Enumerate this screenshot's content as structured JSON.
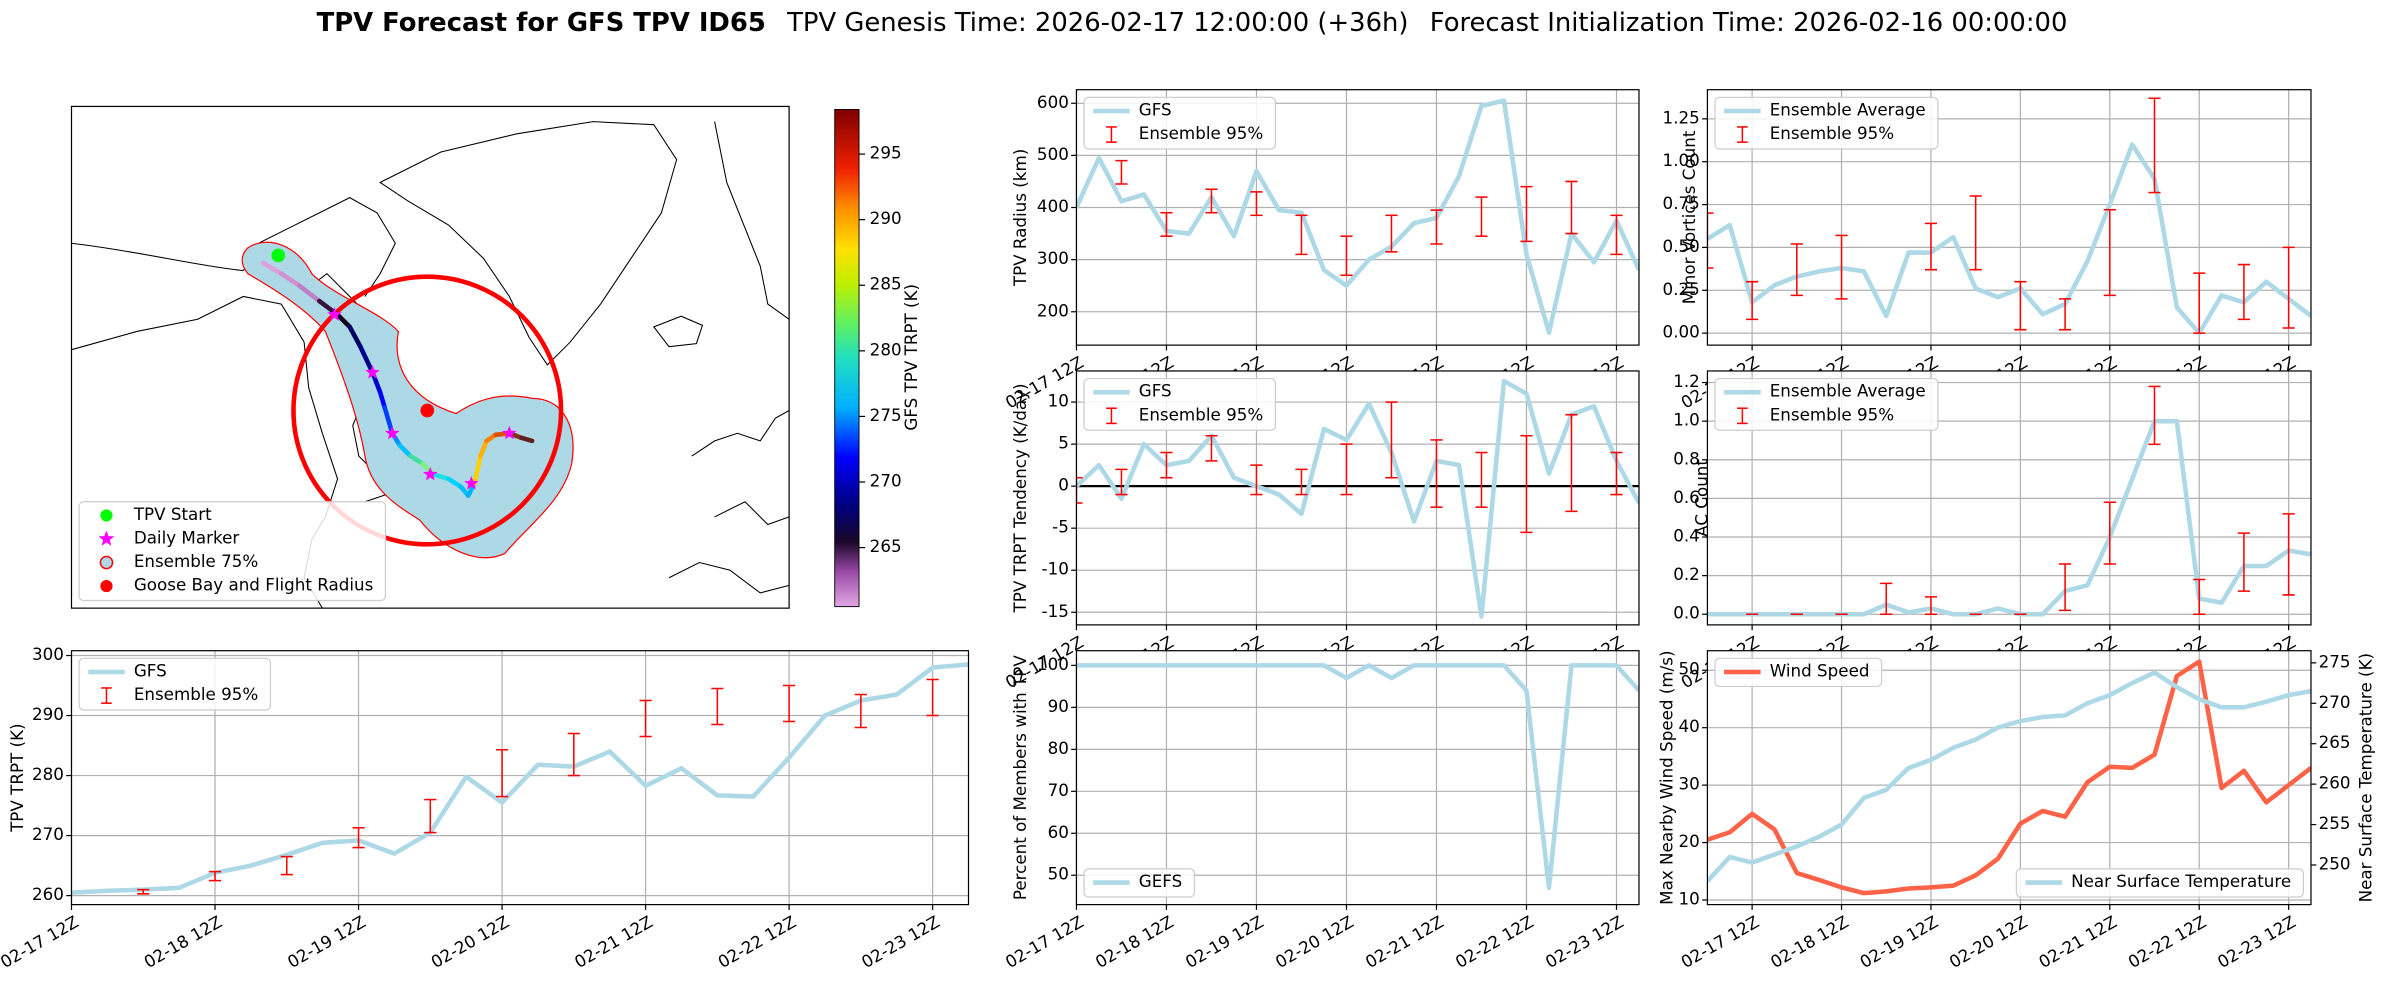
{
  "header": {
    "title": "TPV Forecast for GFS TPV ID65",
    "genesis": "TPV Genesis Time: 2026-02-17 12:00:00 (+36h)",
    "init": "Forecast Initialization Time: 2026-02-16 00:00:00"
  },
  "chart_data": [
    {
      "type": "map",
      "colorbar_label": "GFS TPV TRPT (K)",
      "clim": [
        260.5,
        298.4
      ],
      "cticks": [
        265,
        270,
        275,
        280,
        285,
        290,
        295
      ],
      "legend": "lower left",
      "legend_entries": [
        {
          "name": "TPV Start",
          "marker": "o",
          "color": "#00ff00"
        },
        {
          "name": "Daily Marker",
          "marker": "*",
          "color": "#ff00ff"
        },
        {
          "name": "Ensemble 75%",
          "marker": "o",
          "color": "#add8e6",
          "edgecolor": "#ff0000"
        },
        {
          "name": "Goose Bay and Flight Radius",
          "marker": "o",
          "color": "#ff0000"
        }
      ]
    },
    {
      "type": "line",
      "ylabel": "TPV TRPT (K)",
      "grid": true,
      "legend": "upper left",
      "x": [
        "02-17 12Z",
        "02-17 18Z",
        "02-18 00Z",
        "02-18 06Z",
        "02-18 12Z",
        "02-18 18Z",
        "02-19 00Z",
        "02-19 06Z",
        "02-19 12Z",
        "02-19 18Z",
        "02-20 00Z",
        "02-20 06Z",
        "02-20 12Z",
        "02-20 18Z",
        "02-21 00Z",
        "02-21 06Z",
        "02-21 12Z",
        "02-21 18Z",
        "02-22 00Z",
        "02-22 06Z",
        "02-22 12Z",
        "02-22 18Z",
        "02-23 00Z",
        "02-23 06Z",
        "02-23 12Z",
        "02-23 18Z"
      ],
      "xticks": [
        "02-17 12Z",
        "02-18 12Z",
        "02-19 12Z",
        "02-20 12Z",
        "02-21 12Z",
        "02-22 12Z",
        "02-23 12Z"
      ],
      "ylim": [
        258.5,
        300.8
      ],
      "yticks": [
        260,
        270,
        280,
        290,
        300
      ],
      "series": [
        {
          "name": "GFS",
          "color": "#add8e6",
          "values": [
            260.5,
            260.8,
            261,
            261.3,
            263.8,
            265,
            266.8,
            268.8,
            269.2,
            267,
            270.5,
            279.8,
            275.5,
            281.8,
            281.5,
            284,
            278.3,
            281.2,
            276.7,
            276.5,
            283,
            290,
            292.5,
            293.5,
            298,
            298.5
          ]
        },
        {
          "name": "Ensemble 95%",
          "type": "errorbar",
          "color": "#ff0000",
          "low": [
            null,
            null,
            260.3,
            null,
            262.5,
            null,
            263.5,
            null,
            268,
            null,
            270.5,
            null,
            276.5,
            null,
            280,
            null,
            286.5,
            null,
            288.5,
            null,
            289,
            null,
            288,
            null,
            290,
            null
          ],
          "high": [
            null,
            null,
            261,
            null,
            264,
            null,
            266.5,
            null,
            271.3,
            null,
            276,
            null,
            284.3,
            null,
            287,
            null,
            292.5,
            null,
            294.5,
            null,
            295,
            null,
            293.5,
            null,
            296,
            null
          ]
        }
      ]
    },
    {
      "type": "line",
      "ylabel": "TPV Radius (km)",
      "grid": true,
      "legend": "upper left",
      "x": [
        "02-17 12Z",
        "02-17 18Z",
        "02-18 00Z",
        "02-18 06Z",
        "02-18 12Z",
        "02-18 18Z",
        "02-19 00Z",
        "02-19 06Z",
        "02-19 12Z",
        "02-19 18Z",
        "02-20 00Z",
        "02-20 06Z",
        "02-20 12Z",
        "02-20 18Z",
        "02-21 00Z",
        "02-21 06Z",
        "02-21 12Z",
        "02-21 18Z",
        "02-22 00Z",
        "02-22 06Z",
        "02-22 12Z",
        "02-22 18Z",
        "02-23 00Z",
        "02-23 06Z",
        "02-23 12Z",
        "02-23 18Z"
      ],
      "xticks": [
        "02-17 12Z",
        "02-18 12Z",
        "02-19 12Z",
        "02-20 12Z",
        "02-21 12Z",
        "02-22 12Z",
        "02-23 12Z"
      ],
      "ylim": [
        136,
        626
      ],
      "yticks": [
        200,
        300,
        400,
        500,
        600
      ],
      "series": [
        {
          "name": "GFS",
          "color": "#add8e6",
          "values": [
            400,
            495,
            412,
            425,
            355,
            350,
            420,
            345,
            470,
            395,
            390,
            280,
            250,
            300,
            325,
            370,
            380,
            460,
            595,
            605,
            310,
            160,
            350,
            295,
            375,
            280
          ]
        },
        {
          "name": "Ensemble 95%",
          "type": "errorbar",
          "color": "#ff0000",
          "low": [
            null,
            null,
            445,
            null,
            345,
            null,
            390,
            null,
            385,
            null,
            310,
            null,
            270,
            null,
            315,
            null,
            330,
            null,
            345,
            null,
            335,
            null,
            350,
            null,
            310,
            null
          ],
          "high": [
            null,
            null,
            490,
            null,
            390,
            null,
            435,
            null,
            430,
            null,
            385,
            null,
            345,
            null,
            385,
            null,
            395,
            null,
            420,
            null,
            440,
            null,
            450,
            null,
            385,
            null
          ]
        }
      ]
    },
    {
      "type": "line",
      "ylabel": "TPV TRPT Tendency (K/day)",
      "grid": true,
      "legend": "upper left",
      "hline": 0,
      "x": [
        "02-17 12Z",
        "02-17 18Z",
        "02-18 00Z",
        "02-18 06Z",
        "02-18 12Z",
        "02-18 18Z",
        "02-19 00Z",
        "02-19 06Z",
        "02-19 12Z",
        "02-19 18Z",
        "02-20 00Z",
        "02-20 06Z",
        "02-20 12Z",
        "02-20 18Z",
        "02-21 00Z",
        "02-21 06Z",
        "02-21 12Z",
        "02-21 18Z",
        "02-22 00Z",
        "02-22 06Z",
        "02-22 12Z",
        "02-22 18Z",
        "02-23 00Z",
        "02-23 06Z",
        "02-23 12Z",
        "02-23 18Z"
      ],
      "xticks": [
        "02-17 12Z",
        "02-18 12Z",
        "02-19 12Z",
        "02-20 12Z",
        "02-21 12Z",
        "02-22 12Z",
        "02-23 12Z"
      ],
      "ylim": [
        -16.5,
        13.7
      ],
      "yticks": [
        -15,
        -10,
        -5,
        0,
        5,
        10
      ],
      "series": [
        {
          "name": "GFS",
          "color": "#add8e6",
          "values": [
            0,
            2.5,
            -1.5,
            5,
            2.5,
            3,
            6,
            1,
            0,
            -1,
            -3.3,
            6.8,
            5.5,
            9.8,
            4,
            -4.2,
            3,
            2.5,
            -15.5,
            12.5,
            11,
            1.5,
            8.5,
            9.5,
            3,
            -2
          ]
        },
        {
          "name": "Ensemble 95%",
          "type": "errorbar",
          "color": "#ff0000",
          "low": [
            -2,
            null,
            -1,
            null,
            1,
            null,
            3,
            null,
            -1,
            null,
            -1,
            null,
            -1,
            null,
            1,
            null,
            -2.5,
            null,
            -2.5,
            null,
            -5.5,
            null,
            -3,
            null,
            -1,
            null
          ],
          "high": [
            1,
            null,
            2,
            null,
            4,
            null,
            6,
            null,
            2.5,
            null,
            2,
            null,
            5,
            null,
            10,
            null,
            5.5,
            null,
            4,
            null,
            6,
            null,
            8.5,
            null,
            4,
            null
          ]
        }
      ]
    },
    {
      "type": "line",
      "ylabel": "Percent of Members with TPV",
      "grid": true,
      "legend": "lower left",
      "x": [
        "02-17 12Z",
        "02-17 18Z",
        "02-18 00Z",
        "02-18 06Z",
        "02-18 12Z",
        "02-18 18Z",
        "02-19 00Z",
        "02-19 06Z",
        "02-19 12Z",
        "02-19 18Z",
        "02-20 00Z",
        "02-20 06Z",
        "02-20 12Z",
        "02-20 18Z",
        "02-21 00Z",
        "02-21 06Z",
        "02-21 12Z",
        "02-21 18Z",
        "02-22 00Z",
        "02-22 06Z",
        "02-22 12Z",
        "02-22 18Z",
        "02-23 00Z",
        "02-23 06Z",
        "02-23 12Z",
        "02-23 18Z"
      ],
      "xticks": [
        "02-17 12Z",
        "02-18 12Z",
        "02-19 12Z",
        "02-20 12Z",
        "02-21 12Z",
        "02-22 12Z",
        "02-23 12Z"
      ],
      "ylim": [
        43,
        103.5
      ],
      "yticks": [
        50,
        60,
        70,
        80,
        90,
        100
      ],
      "series": [
        {
          "name": "GEFS",
          "color": "#add8e6",
          "values": [
            100,
            100,
            100,
            100,
            100,
            100,
            100,
            100,
            100,
            100,
            100,
            100,
            97,
            100,
            97,
            100,
            100,
            100,
            100,
            100,
            94,
            47,
            100,
            100,
            100,
            94
          ]
        }
      ]
    },
    {
      "type": "line",
      "ylabel": "Minor Vortices Count",
      "grid": true,
      "legend": "upper left",
      "x": [
        "02-17 00Z",
        "02-17 06Z",
        "02-17 12Z",
        "02-17 18Z",
        "02-18 00Z",
        "02-18 06Z",
        "02-18 12Z",
        "02-18 18Z",
        "02-19 00Z",
        "02-19 06Z",
        "02-19 12Z",
        "02-19 18Z",
        "02-20 00Z",
        "02-20 06Z",
        "02-20 12Z",
        "02-20 18Z",
        "02-21 00Z",
        "02-21 06Z",
        "02-21 12Z",
        "02-21 18Z",
        "02-22 00Z",
        "02-22 06Z",
        "02-22 12Z",
        "02-22 18Z",
        "02-23 00Z",
        "02-23 06Z",
        "02-23 12Z",
        "02-23 18Z"
      ],
      "xticks": [
        "02-17 12Z",
        "02-18 12Z",
        "02-19 12Z",
        "02-20 12Z",
        "02-21 12Z",
        "02-22 12Z",
        "02-23 12Z"
      ],
      "ylim": [
        -0.07,
        1.42
      ],
      "yticks": [
        {
          "value": 0,
          "label": "0.00"
        },
        {
          "value": 0.25,
          "label": "0.25"
        },
        {
          "value": 0.5,
          "label": "0.50"
        },
        {
          "value": 0.75,
          "label": "0.75"
        },
        {
          "value": 1,
          "label": "1.00"
        },
        {
          "value": 1.25,
          "label": "1.25"
        }
      ],
      "series": [
        {
          "name": "Ensemble Average",
          "color": "#add8e6",
          "values": [
            0.55,
            0.63,
            0.18,
            0.28,
            0.33,
            0.36,
            0.38,
            0.36,
            0.1,
            0.47,
            0.47,
            0.56,
            0.26,
            0.21,
            0.26,
            0.11,
            0.17,
            0.42,
            0.75,
            1.1,
            0.9,
            0.15,
            0,
            0.22,
            0.18,
            0.3,
            0.2,
            0.1
          ]
        },
        {
          "name": "Ensemble 95%",
          "type": "errorbar",
          "color": "#ff0000",
          "low": [
            0.38,
            null,
            0.08,
            null,
            0.22,
            null,
            0.2,
            null,
            null,
            null,
            0.37,
            null,
            0.37,
            null,
            0.02,
            null,
            0.02,
            null,
            0.22,
            null,
            0.82,
            null,
            0,
            null,
            0.08,
            null,
            0.03,
            null
          ],
          "high": [
            0.7,
            null,
            0.3,
            null,
            0.52,
            null,
            0.57,
            null,
            null,
            null,
            0.64,
            null,
            0.8,
            null,
            0.3,
            null,
            0.2,
            null,
            0.72,
            null,
            1.37,
            null,
            0.35,
            null,
            0.4,
            null,
            0.5,
            null
          ]
        }
      ]
    },
    {
      "type": "line",
      "ylabel": "AC Count",
      "grid": true,
      "legend": "upper left",
      "x": [
        "02-17 00Z",
        "02-17 06Z",
        "02-17 12Z",
        "02-17 18Z",
        "02-18 00Z",
        "02-18 06Z",
        "02-18 12Z",
        "02-18 18Z",
        "02-19 00Z",
        "02-19 06Z",
        "02-19 12Z",
        "02-19 18Z",
        "02-20 00Z",
        "02-20 06Z",
        "02-20 12Z",
        "02-20 18Z",
        "02-21 00Z",
        "02-21 06Z",
        "02-21 12Z",
        "02-21 18Z",
        "02-22 00Z",
        "02-22 06Z",
        "02-22 12Z",
        "02-22 18Z",
        "02-23 00Z",
        "02-23 06Z",
        "02-23 12Z",
        "02-23 18Z"
      ],
      "xticks": [
        "02-17 12Z",
        "02-18 12Z",
        "02-19 12Z",
        "02-20 12Z",
        "02-21 12Z",
        "02-22 12Z",
        "02-23 12Z"
      ],
      "ylim": [
        -0.055,
        1.26
      ],
      "yticks": [
        {
          "value": 0,
          "label": "0.0"
        },
        0.2,
        0.4,
        0.6,
        0.8,
        {
          "value": 1,
          "label": "1.0"
        },
        1.2
      ],
      "series": [
        {
          "name": "Ensemble Average",
          "color": "#add8e6",
          "values": [
            0,
            0,
            0,
            0,
            0,
            0,
            0,
            0,
            0.05,
            0.01,
            0.03,
            0,
            0,
            0.03,
            0,
            0,
            0.12,
            0.15,
            0.4,
            0.7,
            1,
            1,
            0.08,
            0.06,
            0.25,
            0.25,
            0.33,
            0.31
          ]
        },
        {
          "name": "Ensemble 95%",
          "type": "errorbar",
          "color": "#ff0000",
          "low": [
            null,
            null,
            0,
            null,
            0,
            null,
            0,
            null,
            0,
            null,
            0,
            null,
            0,
            null,
            0,
            null,
            0.02,
            null,
            0.26,
            null,
            0.88,
            null,
            0,
            null,
            0.12,
            null,
            0.1,
            null
          ],
          "high": [
            null,
            null,
            0,
            null,
            0,
            null,
            0,
            null,
            0.16,
            null,
            0.09,
            null,
            0,
            null,
            0,
            null,
            0.26,
            null,
            0.58,
            null,
            1.18,
            null,
            0.18,
            null,
            0.42,
            null,
            0.52,
            null
          ]
        }
      ]
    },
    {
      "type": "line",
      "ylabel": "Max Nearby Wind Speed (m/s)",
      "ylabel_color": "#ff6347",
      "y2label": "Near Surface Temperature (K)",
      "y2label_color": "#4169e1",
      "grid": true,
      "x": [
        "02-17 00Z",
        "02-17 06Z",
        "02-17 12Z",
        "02-17 18Z",
        "02-18 00Z",
        "02-18 06Z",
        "02-18 12Z",
        "02-18 18Z",
        "02-19 00Z",
        "02-19 06Z",
        "02-19 12Z",
        "02-19 18Z",
        "02-20 00Z",
        "02-20 06Z",
        "02-20 12Z",
        "02-20 18Z",
        "02-21 00Z",
        "02-21 06Z",
        "02-21 12Z",
        "02-21 18Z",
        "02-22 00Z",
        "02-22 06Z",
        "02-22 12Z",
        "02-22 18Z",
        "02-23 00Z",
        "02-23 06Z",
        "02-23 12Z",
        "02-23 18Z"
      ],
      "xticks": [
        "02-17 12Z",
        "02-18 12Z",
        "02-19 12Z",
        "02-20 12Z",
        "02-21 12Z",
        "02-22 12Z",
        "02-23 12Z"
      ],
      "ylim": [
        9.2,
        53.4
      ],
      "yticks": [
        10,
        20,
        30,
        40,
        50
      ],
      "y2lim": [
        245.1,
        276.5
      ],
      "y2ticks": [
        250,
        255,
        260,
        265,
        270,
        275
      ],
      "series": [
        {
          "name": "Wind Speed",
          "color": "#ff6347",
          "legend": "upper left",
          "values": [
            20.5,
            21.8,
            25,
            22.3,
            14.7,
            13.5,
            12.2,
            11.2,
            11.5,
            12,
            12.2,
            12.5,
            14.3,
            17.2,
            23.3,
            25.5,
            24.5,
            30.5,
            33.2,
            33,
            35.3,
            49,
            51.5,
            29.5,
            32.5,
            27,
            30,
            33
          ]
        },
        {
          "name": "Near Surface Temperature",
          "color": "#add8e6",
          "axis": "y2",
          "legend": "lower right",
          "values": [
            248,
            251,
            250.3,
            251.3,
            252.3,
            253.5,
            255,
            258.3,
            259.3,
            262,
            263,
            264.5,
            265.5,
            267,
            267.8,
            268.3,
            268.5,
            270,
            271,
            272.5,
            273.8,
            272,
            270.5,
            269.5,
            269.5,
            270.2,
            271,
            271.5
          ]
        }
      ]
    }
  ]
}
